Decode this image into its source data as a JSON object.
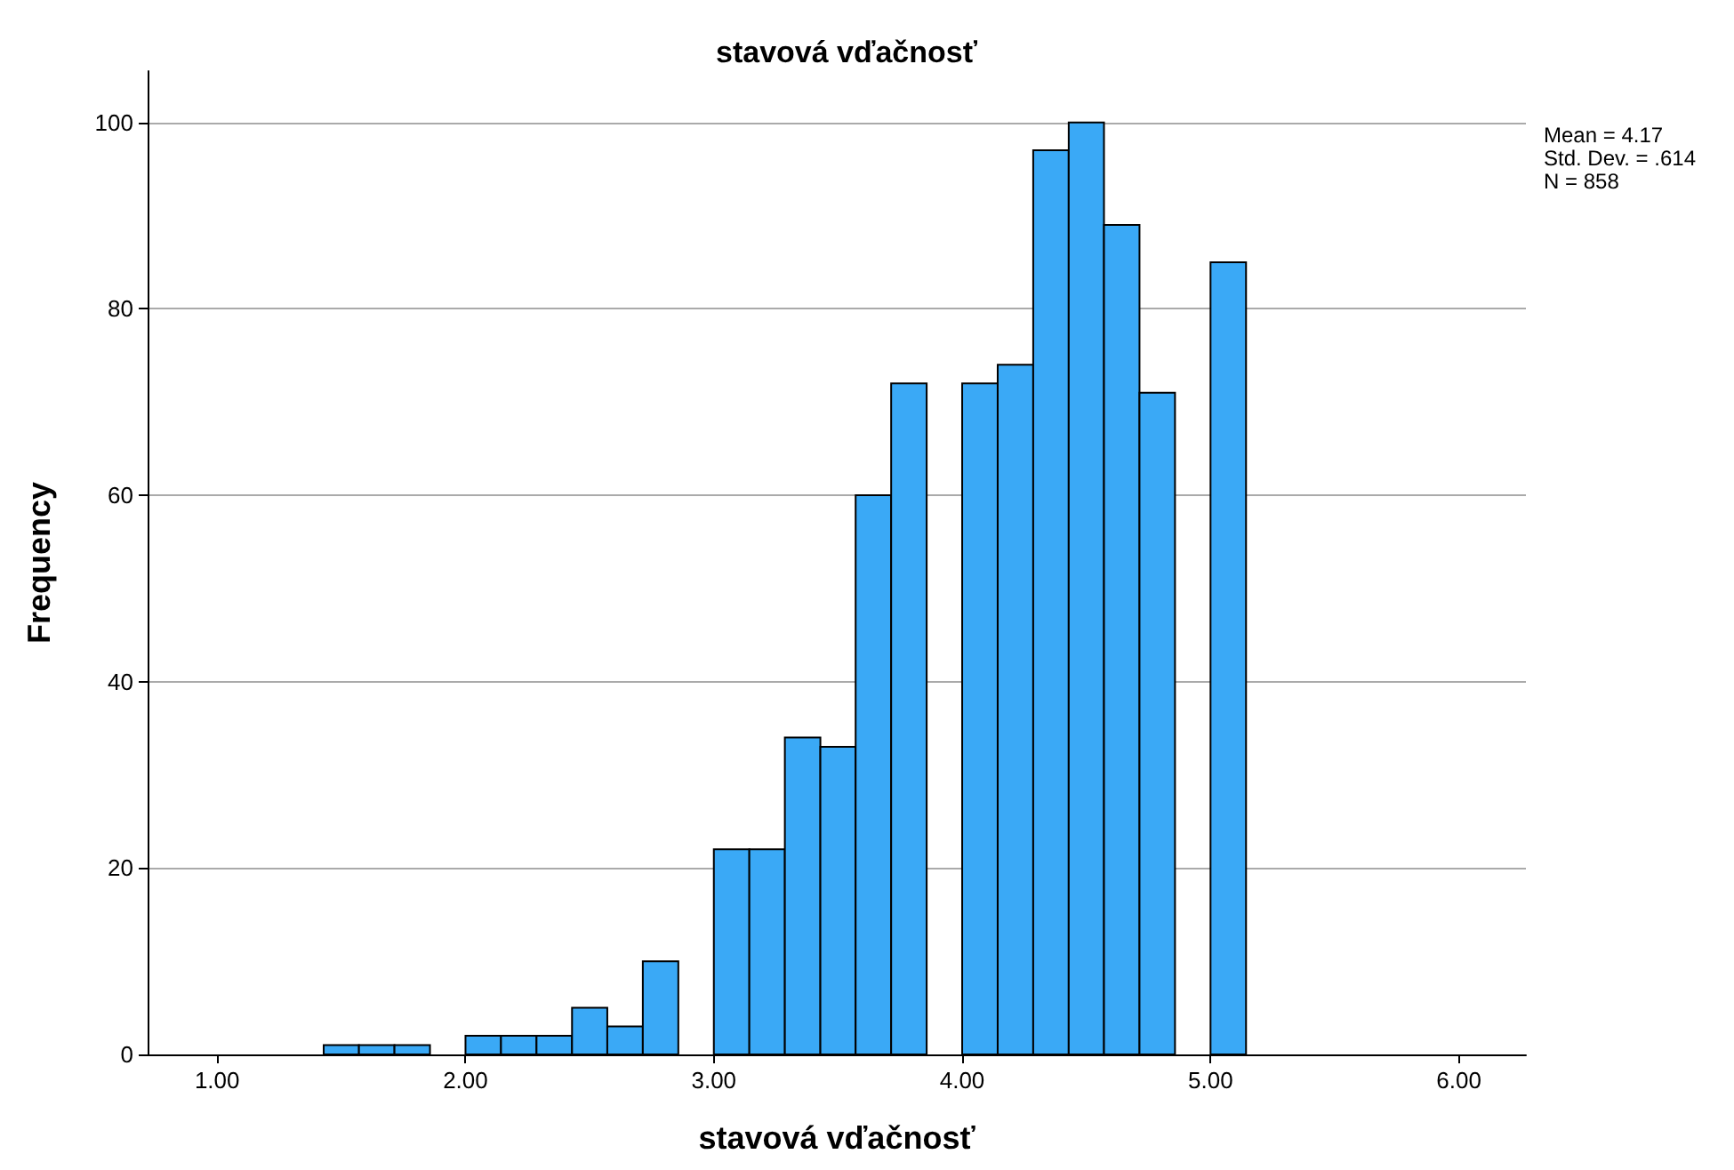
{
  "chart_data": {
    "type": "histogram",
    "title": "stavová vďačnosť",
    "xlabel": "stavová vďačnosť",
    "ylabel": "Frequency",
    "bins": [
      1.429,
      1.571,
      1.714,
      1.857,
      2.0,
      2.143,
      2.286,
      2.429,
      2.571,
      2.714,
      2.857,
      3.0,
      3.143,
      3.286,
      3.429,
      3.571,
      3.714,
      3.857,
      4.0,
      4.143,
      4.286,
      4.429,
      4.571,
      4.714,
      4.857,
      5.0,
      5.143
    ],
    "values": [
      1,
      1,
      1,
      0,
      2,
      2,
      2,
      5,
      3,
      10,
      0,
      22,
      22,
      34,
      33,
      60,
      72,
      0,
      72,
      74,
      97,
      100,
      89,
      71,
      0,
      85
    ],
    "color": "#3aa9f6",
    "xlim": [
      0.72,
      6.27
    ],
    "xticks": [
      {
        "value": 1,
        "label": "1.00"
      },
      {
        "value": 2,
        "label": "2.00"
      },
      {
        "value": 3,
        "label": "3.00"
      },
      {
        "value": 4,
        "label": "4.00"
      },
      {
        "value": 5,
        "label": "5.00"
      },
      {
        "value": 6,
        "label": "6.00"
      }
    ],
    "ylim": [
      0,
      105.5
    ],
    "yticks": [
      0,
      20,
      40,
      60,
      80,
      100
    ],
    "grid": "y",
    "annotations": [
      "Mean = 4.17",
      "Std. Dev. = .614",
      "N = 858"
    ]
  }
}
